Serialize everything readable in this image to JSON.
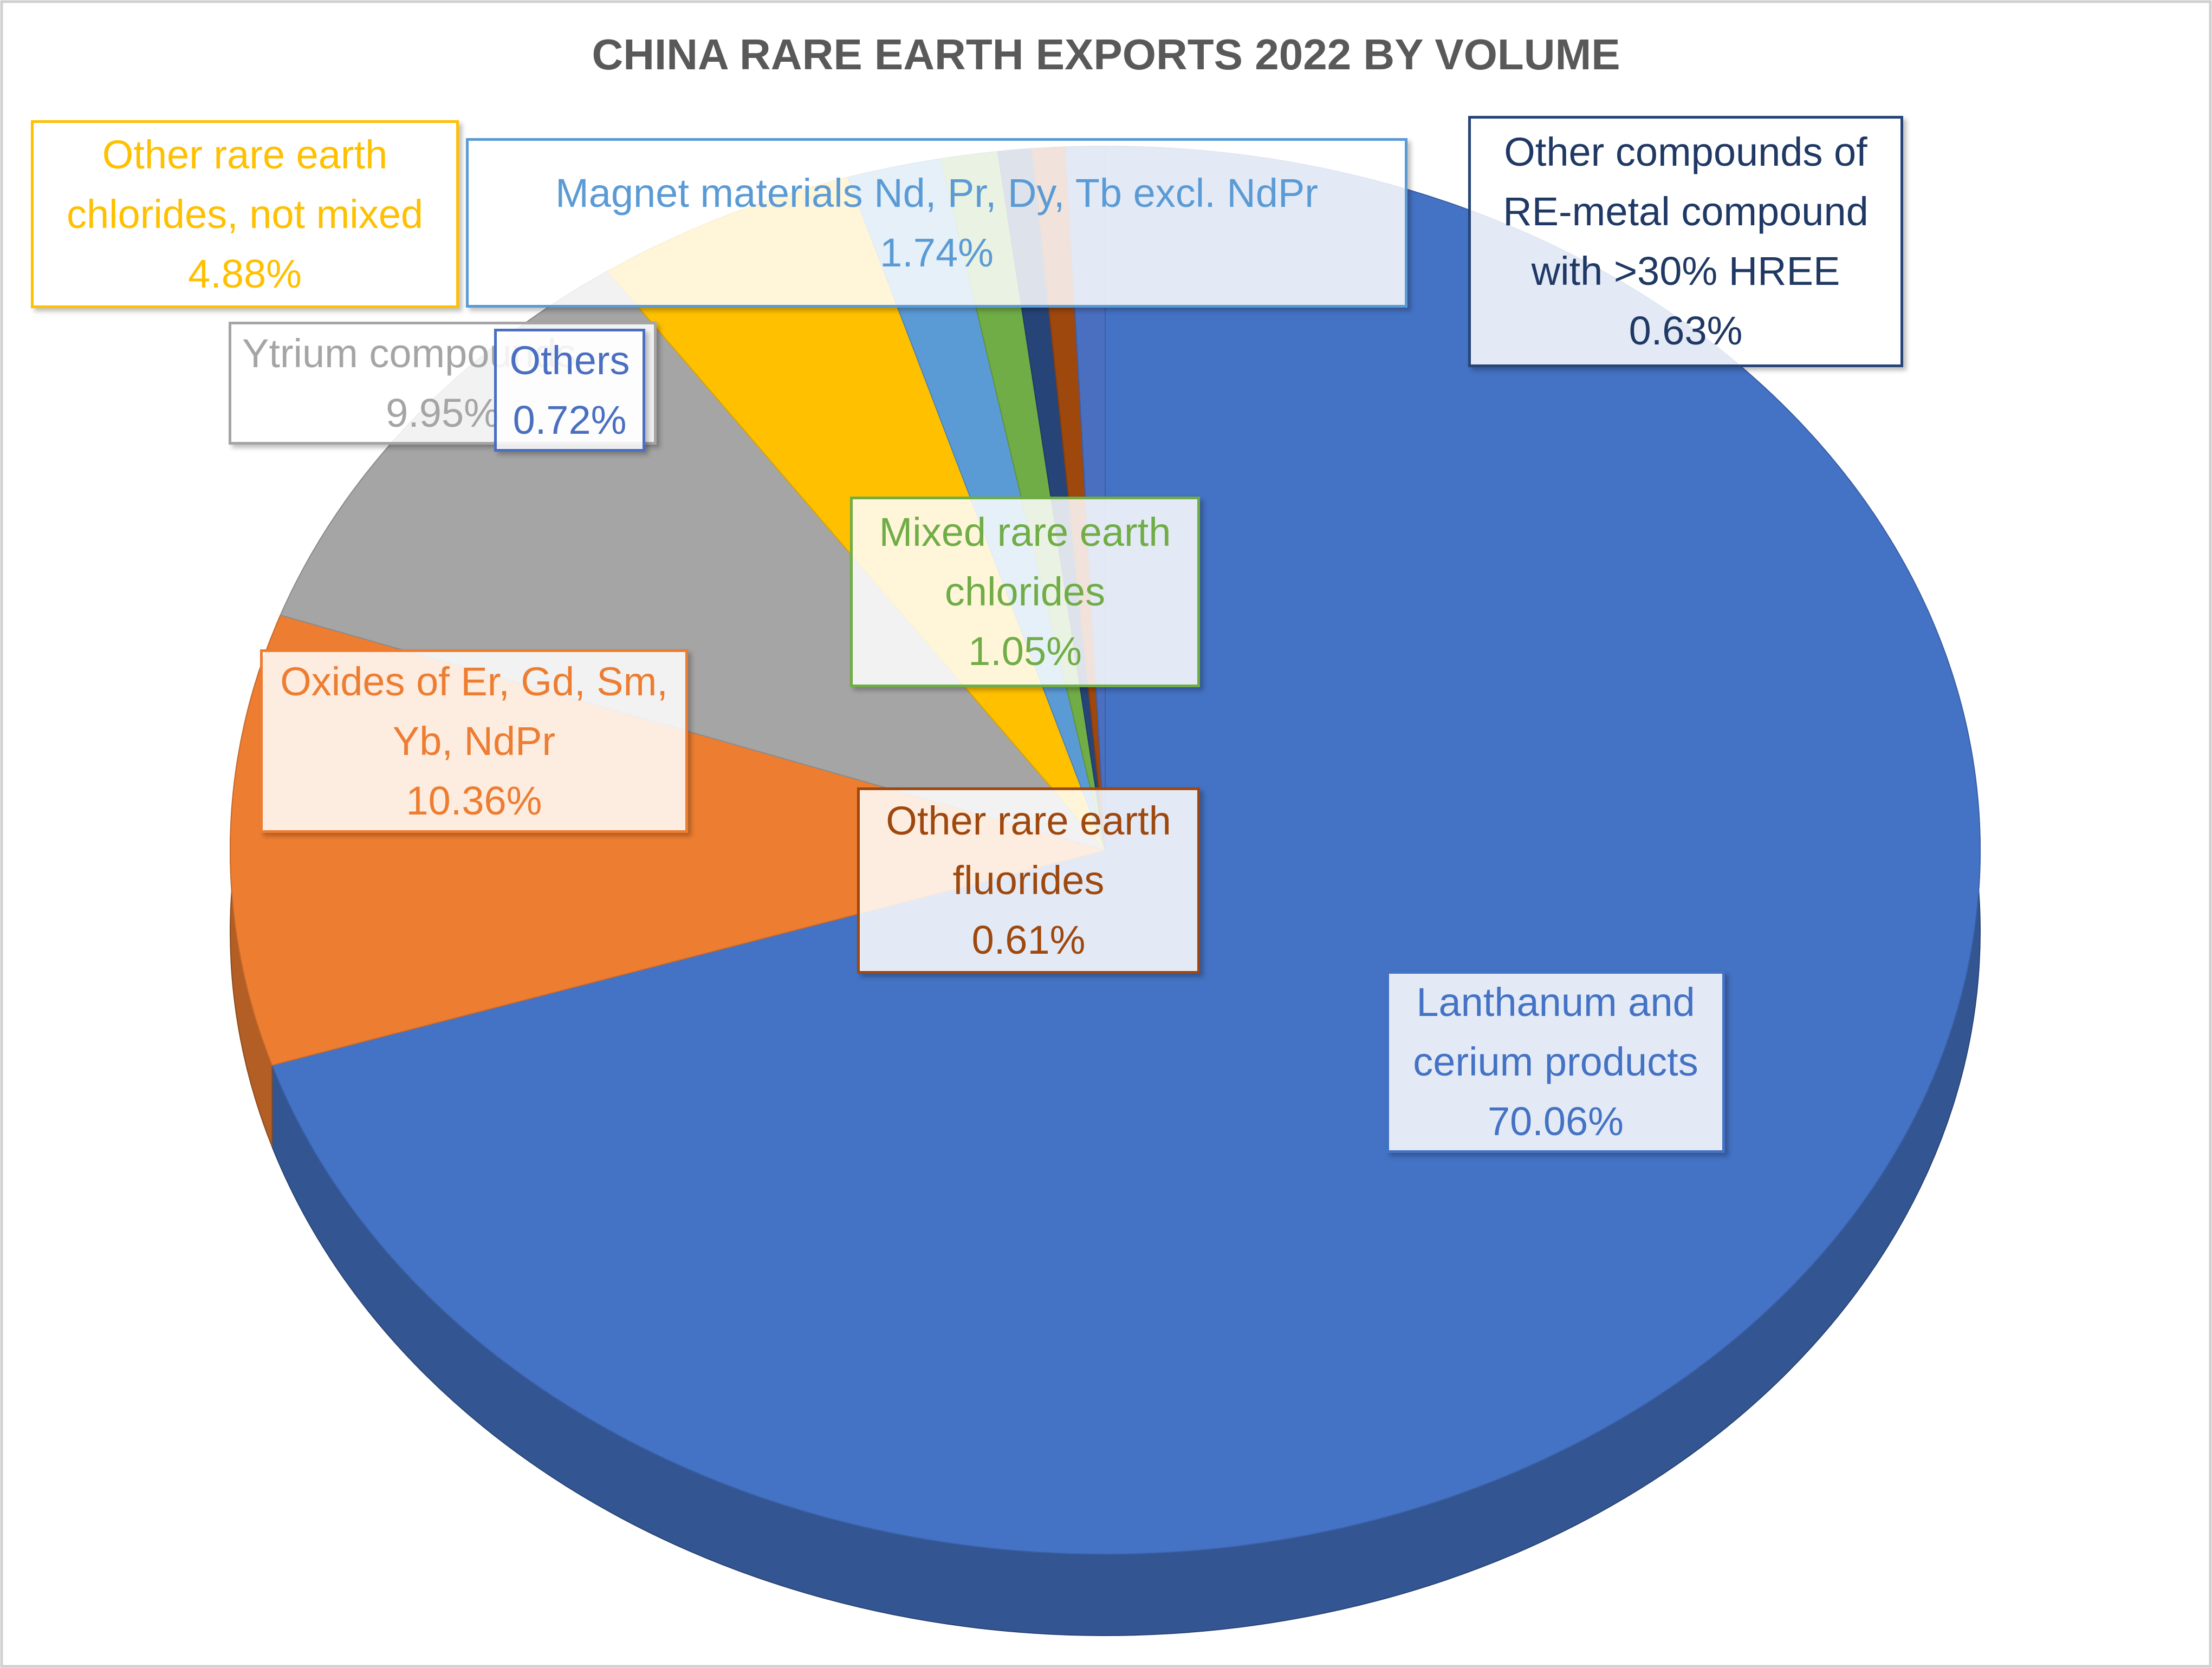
{
  "chart_data": {
    "type": "pie",
    "title": "CHINA RARE EARTH EXPORTS 2022 BY VOLUME",
    "categories": [
      "Lanthanum and cerium products",
      "Oxides of Er, Gd, Sm, Yb, NdPr",
      "Ytrium compounds",
      "Other rare earth chlorides, not mixed",
      "Magnet materials Nd, Pr, Dy, Tb excl. NdPr",
      "Mixed rare earth chlorides",
      "Other compounds of RE-metal compound with >30% HREE",
      "Other rare earth fluorides",
      "Others"
    ],
    "values": [
      70.06,
      10.36,
      9.95,
      4.88,
      1.74,
      1.05,
      0.63,
      0.61,
      0.72
    ],
    "value_labels": [
      "70.06%",
      "10.36%",
      "9.95%",
      "4.88%",
      "1.74%",
      "1.05%",
      "0.63%",
      "0.61%",
      "0.72%"
    ],
    "colors": [
      "#4472c4",
      "#ed7d31",
      "#a5a5a5",
      "#ffc000",
      "#5b9bd5",
      "#70ad47",
      "#264478",
      "#9e480e",
      "#4a6fc0"
    ]
  }
}
